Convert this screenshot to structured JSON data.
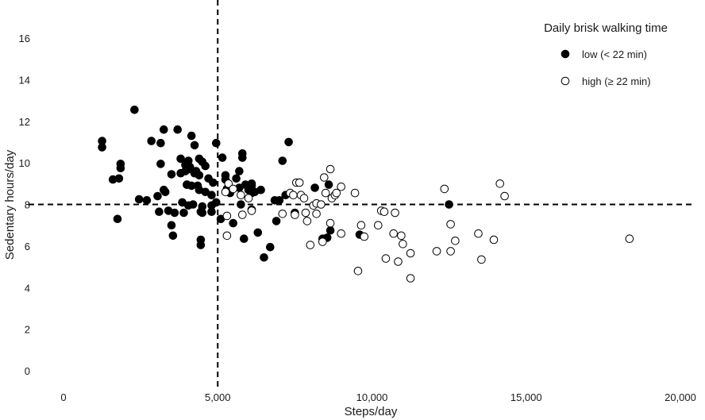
{
  "chart_data": {
    "type": "scatter",
    "xlabel": "Steps/day",
    "ylabel": "Sedentary hours/day",
    "xlim": [
      0,
      20000
    ],
    "ylim": [
      0,
      16
    ],
    "x_ticks": [
      0,
      5000,
      10000,
      15000,
      20000
    ],
    "x_tick_labels": [
      "0",
      "5,000",
      "10,000",
      "15,000",
      "20,000"
    ],
    "y_ticks": [
      0,
      2,
      4,
      6,
      8,
      10,
      12,
      14,
      16
    ],
    "y_tick_labels": [
      "0",
      "2",
      "4",
      "6",
      "8",
      "10",
      "12",
      "14",
      "16"
    ],
    "reference_lines": {
      "vertical_x": 5000,
      "horizontal_y": 8,
      "style": "dashed"
    },
    "grid": false,
    "legend": {
      "title": "Daily brisk walking time",
      "position": "top-right",
      "entries": [
        {
          "label": "low (< 22 min)",
          "marker": "filled-circle"
        },
        {
          "label": "high (≥ 22 min)",
          "marker": "open-circle"
        }
      ]
    },
    "series": [
      {
        "name": "low (< 22 min)",
        "marker": "filled",
        "color": "#000000",
        "points": [
          [
            1250,
            11.05
          ],
          [
            1250,
            10.75
          ],
          [
            1600,
            9.2
          ],
          [
            1800,
            9.25
          ],
          [
            1850,
            9.95
          ],
          [
            1850,
            9.75
          ],
          [
            1750,
            7.3
          ],
          [
            2300,
            12.55
          ],
          [
            2450,
            8.25
          ],
          [
            2700,
            8.2
          ],
          [
            2850,
            11.05
          ],
          [
            3050,
            8.4
          ],
          [
            3100,
            7.65
          ],
          [
            3150,
            9.95
          ],
          [
            3150,
            10.95
          ],
          [
            3250,
            11.6
          ],
          [
            3250,
            8.7
          ],
          [
            3300,
            8.6
          ],
          [
            3400,
            7.7
          ],
          [
            3500,
            7.0
          ],
          [
            3500,
            9.45
          ],
          [
            3550,
            6.5
          ],
          [
            3600,
            7.6
          ],
          [
            3700,
            11.6
          ],
          [
            3800,
            9.5
          ],
          [
            3800,
            10.2
          ],
          [
            3850,
            8.1
          ],
          [
            3900,
            7.6
          ],
          [
            3950,
            9.9
          ],
          [
            3950,
            9.6
          ],
          [
            4000,
            8.95
          ],
          [
            4000,
            8.95
          ],
          [
            4050,
            10.1
          ],
          [
            4050,
            7.95
          ],
          [
            4100,
            9.7
          ],
          [
            4100,
            9.8
          ],
          [
            4150,
            8.9
          ],
          [
            4150,
            11.3
          ],
          [
            4200,
            8.0
          ],
          [
            4250,
            9.5
          ],
          [
            4250,
            10.85
          ],
          [
            4300,
            9.6
          ],
          [
            4350,
            8.9
          ],
          [
            4400,
            10.2
          ],
          [
            4400,
            8.7
          ],
          [
            4400,
            9.4
          ],
          [
            4450,
            6.3
          ],
          [
            4450,
            6.05
          ],
          [
            4450,
            7.65
          ],
          [
            4500,
            7.6
          ],
          [
            4500,
            7.9
          ],
          [
            4500,
            10.05
          ],
          [
            4600,
            9.85
          ],
          [
            4600,
            8.6
          ],
          [
            4700,
            9.25
          ],
          [
            4800,
            8.45
          ],
          [
            4850,
            9.05
          ],
          [
            4800,
            7.95
          ],
          [
            4800,
            7.65
          ],
          [
            4950,
            8.1
          ],
          [
            4950,
            10.95
          ],
          [
            5100,
            7.3
          ],
          [
            5150,
            10.25
          ],
          [
            5250,
            9.2
          ],
          [
            5250,
            9.4
          ],
          [
            5300,
            8.75
          ],
          [
            5400,
            8.55
          ],
          [
            5500,
            7.1
          ],
          [
            5600,
            9.25
          ],
          [
            5700,
            8.8
          ],
          [
            5700,
            9.6
          ],
          [
            5750,
            8.0
          ],
          [
            5800,
            10.25
          ],
          [
            5800,
            10.45
          ],
          [
            5850,
            6.35
          ],
          [
            5900,
            8.95
          ],
          [
            6000,
            8.7
          ],
          [
            6100,
            9.0
          ],
          [
            6100,
            8.9
          ],
          [
            6100,
            8.55
          ],
          [
            6100,
            7.75
          ],
          [
            6200,
            8.6
          ],
          [
            6300,
            6.65
          ],
          [
            6400,
            8.7
          ],
          [
            6500,
            5.45
          ],
          [
            6700,
            5.95
          ],
          [
            6850,
            8.2
          ],
          [
            6900,
            7.2
          ],
          [
            7000,
            8.2
          ],
          [
            7100,
            10.1
          ],
          [
            7200,
            8.45
          ],
          [
            7300,
            11.0
          ],
          [
            7500,
            7.6
          ],
          [
            8150,
            8.8
          ],
          [
            8400,
            6.35
          ],
          [
            8550,
            6.4
          ],
          [
            8600,
            8.95
          ],
          [
            8650,
            6.75
          ],
          [
            9600,
            6.55
          ],
          [
            12500,
            8.0
          ]
        ]
      },
      {
        "name": "high (≥ 22 min)",
        "marker": "open",
        "color": "#000000",
        "points": [
          [
            5250,
            8.6
          ],
          [
            5350,
            9.0
          ],
          [
            5300,
            7.45
          ],
          [
            5300,
            6.5
          ],
          [
            5500,
            8.75
          ],
          [
            5750,
            8.45
          ],
          [
            5800,
            7.5
          ],
          [
            6000,
            8.3
          ],
          [
            6100,
            7.7
          ],
          [
            7100,
            7.55
          ],
          [
            7350,
            8.55
          ],
          [
            7450,
            8.45
          ],
          [
            7500,
            7.5
          ],
          [
            7550,
            9.05
          ],
          [
            7650,
            9.05
          ],
          [
            7700,
            8.45
          ],
          [
            7800,
            8.3
          ],
          [
            7850,
            7.6
          ],
          [
            7900,
            7.2
          ],
          [
            8000,
            6.05
          ],
          [
            8100,
            7.95
          ],
          [
            8200,
            8.05
          ],
          [
            8200,
            7.55
          ],
          [
            8350,
            8.0
          ],
          [
            8400,
            6.2
          ],
          [
            8450,
            9.3
          ],
          [
            8500,
            8.55
          ],
          [
            8650,
            9.7
          ],
          [
            8650,
            7.1
          ],
          [
            8700,
            8.3
          ],
          [
            8800,
            8.45
          ],
          [
            8850,
            8.55
          ],
          [
            9000,
            6.6
          ],
          [
            9000,
            8.85
          ],
          [
            9450,
            8.55
          ],
          [
            9550,
            4.8
          ],
          [
            9650,
            7.0
          ],
          [
            9750,
            6.45
          ],
          [
            10200,
            7.0
          ],
          [
            10300,
            7.7
          ],
          [
            10400,
            7.65
          ],
          [
            10450,
            5.4
          ],
          [
            10700,
            6.6
          ],
          [
            10750,
            7.6
          ],
          [
            10850,
            5.25
          ],
          [
            10950,
            6.5
          ],
          [
            11000,
            6.1
          ],
          [
            11250,
            5.65
          ],
          [
            11250,
            4.45
          ],
          [
            12100,
            5.75
          ],
          [
            12350,
            8.75
          ],
          [
            12550,
            5.75
          ],
          [
            12550,
            7.05
          ],
          [
            12700,
            6.25
          ],
          [
            13450,
            6.6
          ],
          [
            13550,
            5.35
          ],
          [
            13950,
            6.3
          ],
          [
            14150,
            9.0
          ],
          [
            14300,
            8.4
          ],
          [
            18350,
            6.35
          ]
        ]
      }
    ]
  }
}
